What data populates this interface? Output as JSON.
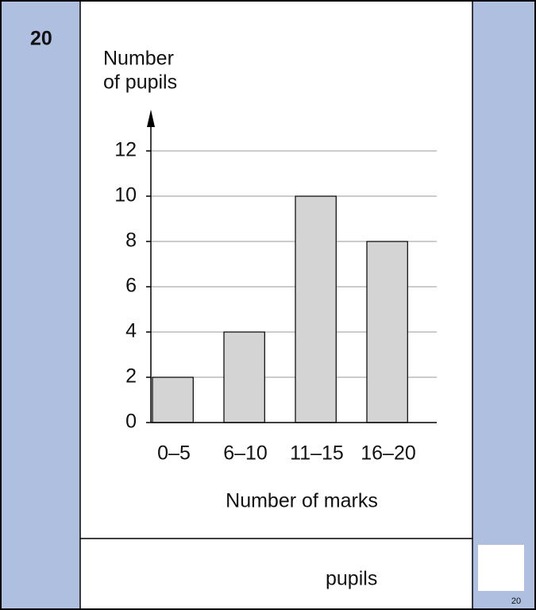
{
  "question_number": "20",
  "answer_unit": "pupils",
  "mark_label": "20",
  "chart_data": {
    "type": "bar",
    "ylabel_lines": [
      "Number",
      "of pupils"
    ],
    "xlabel": "Number of marks",
    "categories": [
      "0–5",
      "6–10",
      "11–15",
      "16–20"
    ],
    "values": [
      2,
      4,
      10,
      8
    ],
    "color": "#d4d4d4",
    "ylim": [
      0,
      12
    ],
    "yticks": [
      0,
      2,
      4,
      6,
      8,
      10,
      12
    ],
    "grid": true
  }
}
